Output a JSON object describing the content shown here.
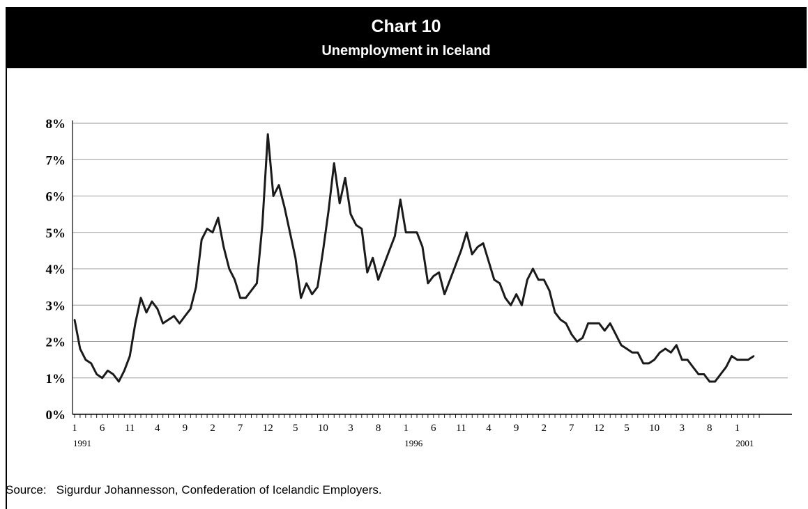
{
  "header": {
    "title": "Chart 10",
    "subtitle": "Unemployment in Iceland"
  },
  "source": "Source:   Sigurdur Johannesson, Confederation of Icelandic Employers.",
  "chart_data": {
    "type": "line",
    "title": "Unemployment in Iceland",
    "xlabel": "",
    "ylabel": "",
    "ylim": [
      0,
      8
    ],
    "y_ticks": [
      "0%",
      "1%",
      "2%",
      "3%",
      "4%",
      "5%",
      "6%",
      "7%",
      "8%"
    ],
    "x_tick_labels": [
      "1",
      "6",
      "11",
      "4",
      "9",
      "2",
      "7",
      "12",
      "5",
      "10",
      "3",
      "8",
      "1",
      "6",
      "11",
      "4",
      "9",
      "2",
      "7",
      "12",
      "5",
      "10",
      "3",
      "8",
      "1"
    ],
    "year_labels": [
      {
        "label": "1991",
        "month_index": 0
      },
      {
        "label": "1996",
        "month_index": 60
      },
      {
        "label": "2001",
        "month_index": 120
      }
    ],
    "grid": true,
    "x_unit": "month",
    "start": "1991-01",
    "series": [
      {
        "values": [
          2.6,
          1.8,
          1.5,
          1.4,
          1.1,
          1.0,
          1.2,
          1.1,
          0.9,
          1.2,
          1.6,
          2.5,
          3.2,
          2.8,
          3.1,
          2.9,
          2.5,
          2.6,
          2.7,
          2.5,
          2.7,
          2.9,
          3.5,
          4.8,
          5.1,
          5.0,
          5.4,
          4.6,
          4.0,
          3.7,
          3.2,
          3.2,
          3.4,
          3.6,
          5.2,
          7.7,
          6.0,
          6.3,
          5.7,
          5.0,
          4.3,
          3.2,
          3.6,
          3.3,
          3.5,
          4.5,
          5.6,
          6.9,
          5.8,
          6.5,
          5.5,
          5.2,
          5.1,
          3.9,
          4.3,
          3.7,
          4.1,
          4.5,
          4.9,
          5.9,
          5.0,
          5.0,
          5.0,
          4.6,
          3.6,
          3.8,
          3.9,
          3.3,
          3.7,
          4.1,
          4.5,
          5.0,
          4.4,
          4.6,
          4.7,
          4.2,
          3.7,
          3.6,
          3.2,
          3.0,
          3.3,
          3.0,
          3.7,
          4.0,
          3.7,
          3.7,
          3.4,
          2.8,
          2.6,
          2.5,
          2.2,
          2.0,
          2.1,
          2.5,
          2.5,
          2.5,
          2.3,
          2.5,
          2.2,
          1.9,
          1.8,
          1.7,
          1.7,
          1.4,
          1.4,
          1.5,
          1.7,
          1.8,
          1.7,
          1.9,
          1.5,
          1.5,
          1.3,
          1.1,
          1.1,
          0.9,
          0.9,
          1.1,
          1.3,
          1.6,
          1.5,
          1.5,
          1.5,
          1.6
        ]
      }
    ]
  }
}
